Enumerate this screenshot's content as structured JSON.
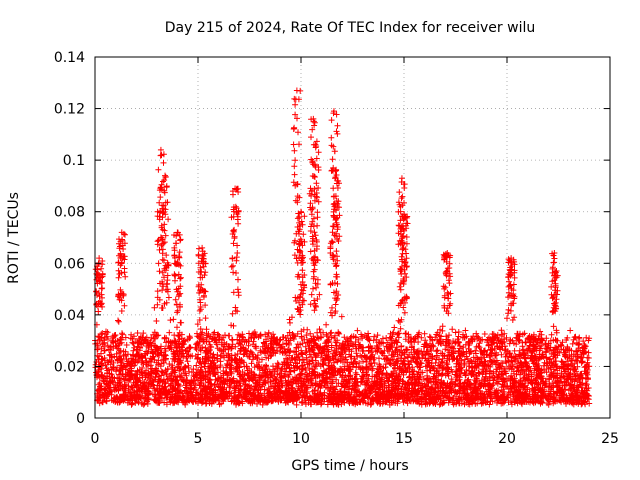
{
  "chart_data": {
    "type": "scatter",
    "title": "Day 215 of 2024, Rate Of TEC Index for receiver wilu",
    "xlabel": "GPS time / hours",
    "ylabel": "ROTI / TECUs",
    "xlim": [
      0,
      25
    ],
    "ylim": [
      0,
      0.14
    ],
    "xticks": [
      0,
      5,
      10,
      15,
      20,
      25
    ],
    "xtick_labels": [
      "0",
      "5",
      "10",
      "15",
      "20",
      "25"
    ],
    "yticks": [
      0,
      0.02,
      0.04,
      0.06,
      0.08,
      0.1,
      0.12,
      0.14
    ],
    "ytick_labels": [
      "0",
      "0.02",
      "0.04",
      "0.06",
      "0.08",
      "0.1",
      "0.12",
      "0.14"
    ],
    "grid": true,
    "marker": "+",
    "color": "#ff0000",
    "series": [
      {
        "name": "ROTI",
        "x_range": [
          0,
          24
        ],
        "typical_range": [
          0.005,
          0.04
        ],
        "peaks": [
          {
            "x": 0.2,
            "y": 0.062
          },
          {
            "x": 1.3,
            "y": 0.072
          },
          {
            "x": 3.2,
            "y": 0.104
          },
          {
            "x": 3.4,
            "y": 0.094
          },
          {
            "x": 4.0,
            "y": 0.072
          },
          {
            "x": 5.2,
            "y": 0.066
          },
          {
            "x": 6.8,
            "y": 0.089
          },
          {
            "x": 9.8,
            "y": 0.127
          },
          {
            "x": 10.0,
            "y": 0.08
          },
          {
            "x": 10.6,
            "y": 0.116
          },
          {
            "x": 10.7,
            "y": 0.106
          },
          {
            "x": 11.6,
            "y": 0.119
          },
          {
            "x": 11.7,
            "y": 0.096
          },
          {
            "x": 14.9,
            "y": 0.093
          },
          {
            "x": 15.0,
            "y": 0.079
          },
          {
            "x": 17.1,
            "y": 0.064
          },
          {
            "x": 20.2,
            "y": 0.062
          },
          {
            "x": 22.3,
            "y": 0.064
          }
        ]
      }
    ]
  }
}
